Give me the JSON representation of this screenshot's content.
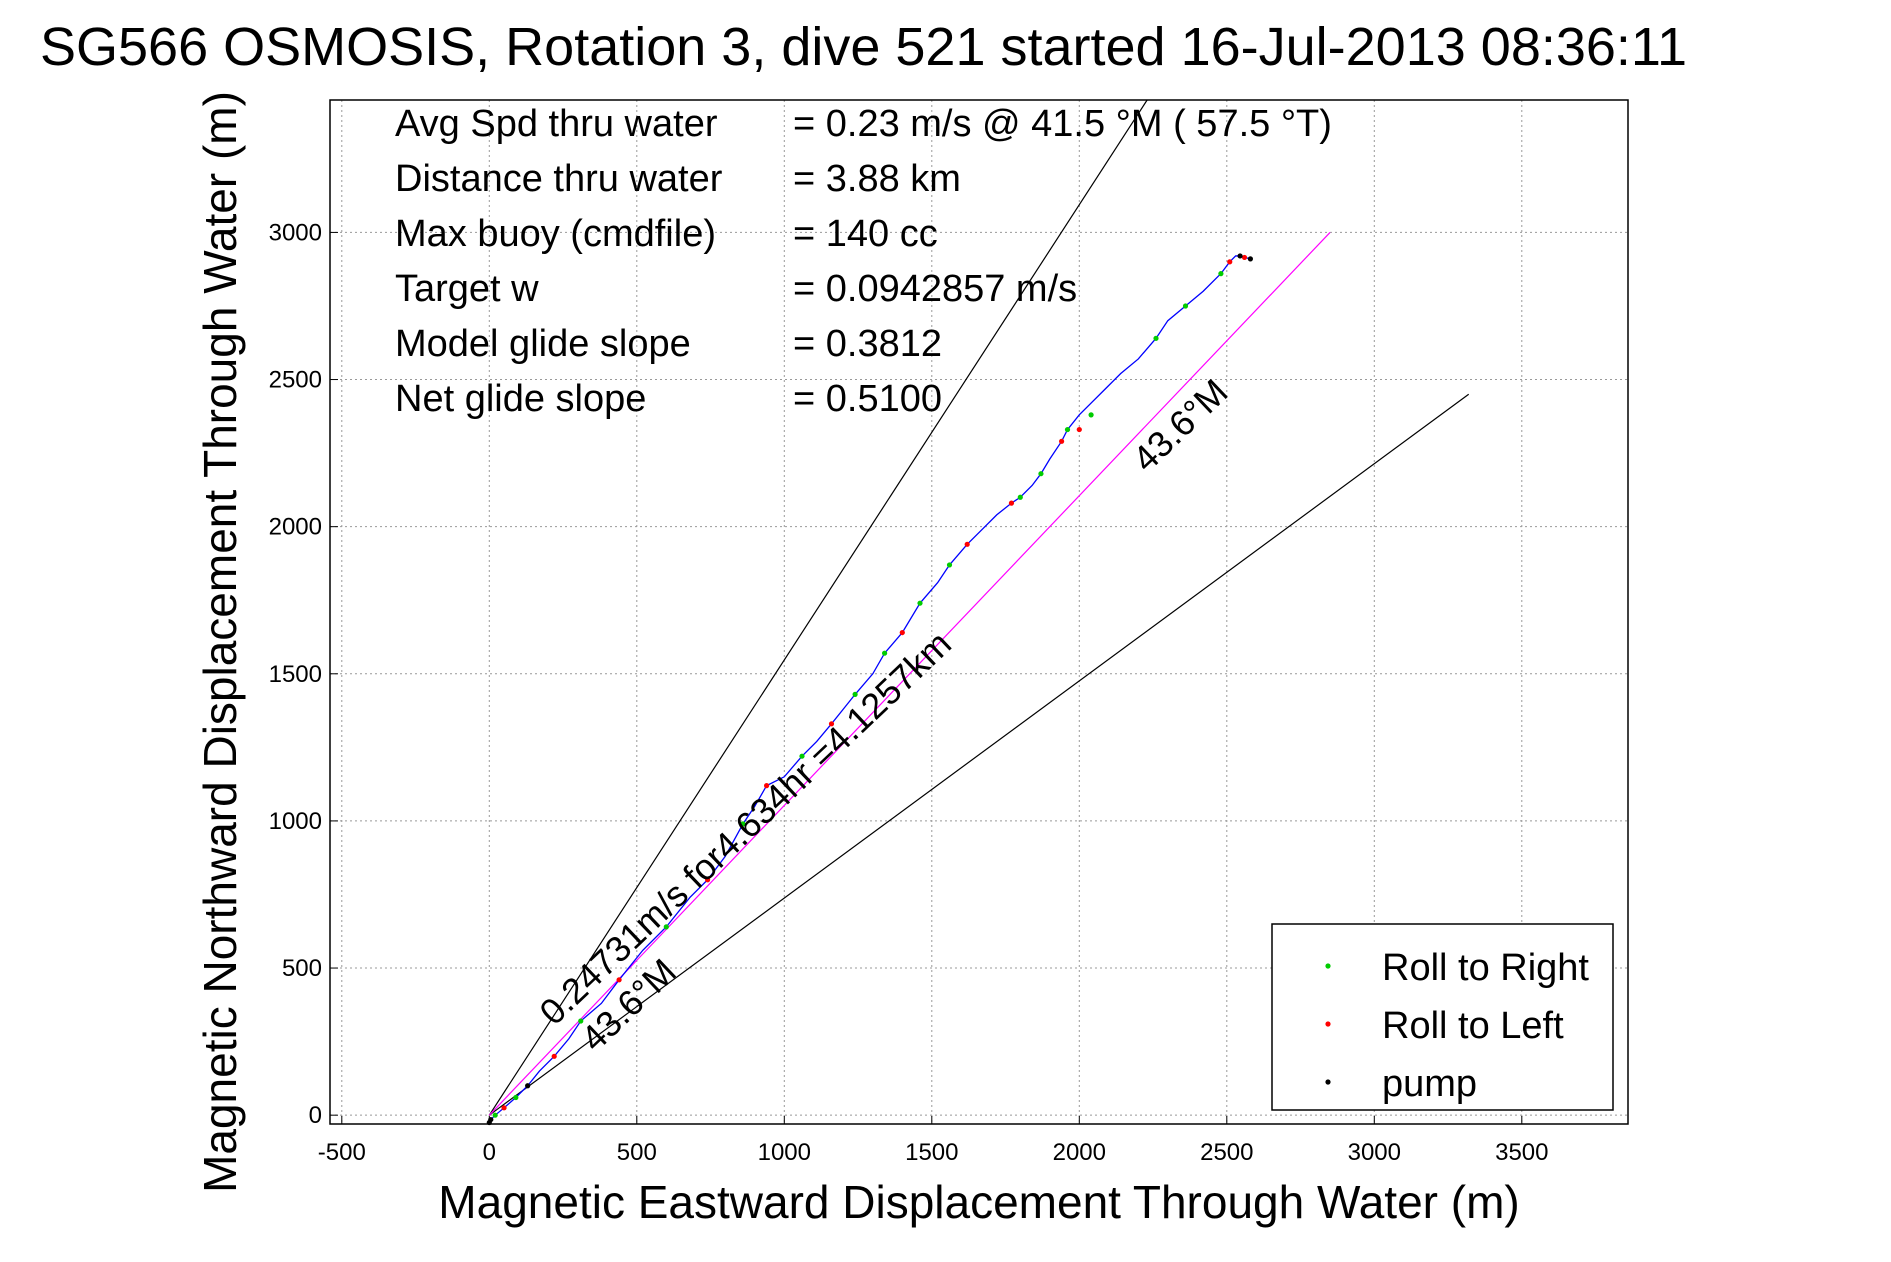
{
  "chart_data": {
    "type": "line",
    "title": "SG566 OSMOSIS, Rotation 3, dive 521 started 16-Jul-2013 08:36:11",
    "xlabel": "Magnetic Eastward Displacement Through Water (m)",
    "ylabel": "Magnetic Northward Displacement Through Water (m)",
    "xlim": [
      -540,
      3860
    ],
    "ylim": [
      -30,
      3450
    ],
    "xticks": [
      -500,
      0,
      500,
      1000,
      1500,
      2000,
      2500,
      3000,
      3500
    ],
    "yticks": [
      0,
      500,
      1000,
      1500,
      2000,
      2500,
      3000
    ],
    "xtick_labels": [
      "-500",
      "0",
      "500",
      "1000",
      "1500",
      "2000",
      "2500",
      "3000",
      "3500"
    ],
    "ytick_labels": [
      "0",
      "500",
      "1000",
      "1500",
      "2000",
      "2500",
      "3000"
    ],
    "grid": true,
    "legend_position": "bottom-right",
    "legend": [
      {
        "label": "Roll to Right",
        "color": "#00cc00"
      },
      {
        "label": "Roll to Left",
        "color": "#ff0000"
      },
      {
        "label": "pump",
        "color": "#000000"
      }
    ],
    "stats": [
      {
        "label": "Avg Spd thru water",
        "value": "=  0.23 m/s @  41.5 °M ( 57.5 °T)"
      },
      {
        "label": "Distance thru water",
        "value": "=  3.88 km"
      },
      {
        "label": "Max buoy (cmdfile)",
        "value": "= 140 cc"
      },
      {
        "label": "Target w",
        "value": "= 0.0942857 m/s"
      },
      {
        "label": "Model glide slope",
        "value": "= 0.3812"
      },
      {
        "label": "Net glide slope",
        "value": "= 0.5100"
      }
    ],
    "annotations": [
      {
        "text": "0.24731m/s for4.634hr =4.1257km",
        "x": 220,
        "y": 300,
        "angle_deg": 43.6
      },
      {
        "text": "43.6°M",
        "x": 2230,
        "y": 2180,
        "angle_deg": 43.6
      },
      {
        "text": "43.6°M",
        "x": 360,
        "y": 210,
        "angle_deg": 43.6
      }
    ],
    "reference_lines": [
      {
        "name": "upper bound",
        "color": "#000000",
        "points": [
          [
            0,
            0
          ],
          [
            2230,
            3450
          ]
        ]
      },
      {
        "name": "lower bound",
        "color": "#000000",
        "points": [
          [
            0,
            0
          ],
          [
            3320,
            2450
          ]
        ]
      },
      {
        "name": "target heading",
        "color": "#ff00ff",
        "points": [
          [
            0,
            0
          ],
          [
            2850,
            3000
          ]
        ]
      }
    ],
    "series": [
      {
        "name": "track",
        "color": "#0000ff",
        "x": [
          0,
          5,
          20,
          50,
          90,
          130,
          170,
          220,
          270,
          310,
          380,
          440,
          520,
          600,
          680,
          740,
          800,
          860,
          900,
          940,
          1000,
          1060,
          1110,
          1160,
          1200,
          1240,
          1300,
          1340,
          1400,
          1460,
          1520,
          1560,
          1620,
          1680,
          1720,
          1770,
          1800,
          1840,
          1870,
          1900,
          1940,
          1960,
          2000,
          2040,
          2090,
          2140,
          2200,
          2260,
          2300,
          2360,
          2420,
          2480,
          2510,
          2530,
          2545,
          2560,
          2580
        ],
        "y": [
          -25,
          -15,
          0,
          25,
          60,
          100,
          150,
          200,
          260,
          320,
          380,
          460,
          560,
          640,
          740,
          800,
          880,
          990,
          1050,
          1120,
          1150,
          1220,
          1270,
          1330,
          1380,
          1430,
          1500,
          1570,
          1640,
          1740,
          1810,
          1870,
          1940,
          2000,
          2040,
          2080,
          2100,
          2140,
          2180,
          2230,
          2290,
          2330,
          2380,
          2420,
          2470,
          2520,
          2570,
          2640,
          2700,
          2750,
          2800,
          2860,
          2900,
          2920,
          2920,
          2915,
          2910
        ]
      }
    ],
    "markers": {
      "roll_right": {
        "color": "#00cc00",
        "x": [
          20,
          90,
          310,
          600,
          860,
          1060,
          1240,
          1340,
          1460,
          1560,
          1800,
          1870,
          1960,
          2040,
          2260,
          2360,
          2480
        ],
        "y": [
          0,
          60,
          320,
          640,
          990,
          1220,
          1430,
          1570,
          1740,
          1870,
          2100,
          2180,
          2330,
          2380,
          2640,
          2750,
          2860
        ]
      },
      "roll_left": {
        "color": "#ff0000",
        "x": [
          50,
          220,
          440,
          740,
          940,
          1160,
          1400,
          1620,
          1770,
          1940,
          2000,
          2510,
          2560
        ],
        "y": [
          25,
          200,
          460,
          800,
          1120,
          1330,
          1640,
          1940,
          2080,
          2290,
          2330,
          2900,
          2915
        ]
      },
      "pump": {
        "color": "#000000",
        "x": [
          0,
          5,
          130,
          2545,
          2580
        ],
        "y": [
          -25,
          -15,
          100,
          2920,
          2910
        ]
      }
    }
  }
}
